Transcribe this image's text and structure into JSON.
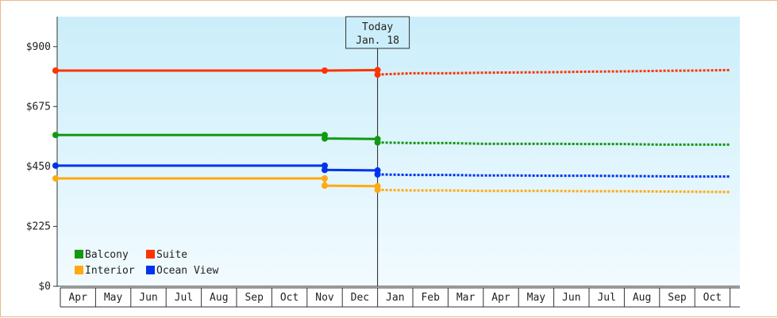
{
  "chart_data": {
    "type": "line",
    "title": "",
    "xlabel": "",
    "ylabel": "",
    "x": [
      "Apr",
      "May",
      "Jun",
      "Jul",
      "Aug",
      "Sep",
      "Oct",
      "Nov",
      "Dec",
      "Jan",
      "Feb",
      "Mar",
      "Apr",
      "May",
      "Jun",
      "Jul",
      "Aug",
      "Sep",
      "Oct"
    ],
    "ylim": [
      0,
      1012.5
    ],
    "yticks": [
      {
        "value": 0,
        "label": "$0"
      },
      {
        "value": 225,
        "label": "$225"
      },
      {
        "value": 450,
        "label": "$450"
      },
      {
        "value": 675,
        "label": "$675"
      },
      {
        "value": 900,
        "label": "$900"
      }
    ],
    "today": {
      "line1": "Today",
      "line2": "Jan. 18",
      "index": 9
    },
    "grid": false,
    "legend_position": "bottom-left",
    "series": [
      {
        "name": "Suite",
        "color": "#ff3300",
        "points": [
          [
            0,
            810
          ],
          [
            7.5,
            810
          ],
          [
            9,
            812
          ]
        ],
        "markers": [
          0,
          7.5,
          9
        ],
        "forecast": [
          [
            9,
            795
          ],
          [
            10,
            800
          ],
          [
            11,
            800
          ],
          [
            12,
            802
          ],
          [
            13,
            803
          ],
          [
            14,
            804
          ],
          [
            15,
            806
          ],
          [
            16,
            807
          ],
          [
            17,
            809
          ],
          [
            18,
            810
          ],
          [
            19,
            812
          ]
        ]
      },
      {
        "name": "Balcony",
        "color": "#119911",
        "points": [
          [
            0,
            568
          ],
          [
            7.5,
            568
          ],
          [
            7.5,
            555
          ],
          [
            9,
            553
          ]
        ],
        "markers": [
          0,
          7.5,
          9
        ],
        "forecast": [
          [
            9,
            540
          ],
          [
            10,
            538
          ],
          [
            11,
            538
          ],
          [
            12,
            535
          ],
          [
            13,
            535
          ],
          [
            14,
            535
          ],
          [
            15,
            534
          ],
          [
            16,
            534
          ],
          [
            17,
            532
          ],
          [
            18,
            532
          ],
          [
            19,
            532
          ]
        ]
      },
      {
        "name": "Ocean View",
        "color": "#0033ee",
        "points": [
          [
            0,
            453
          ],
          [
            7.5,
            453
          ],
          [
            7.5,
            437
          ],
          [
            9,
            435
          ]
        ],
        "markers": [
          0,
          7.5,
          9
        ],
        "forecast": [
          [
            9,
            420
          ],
          [
            10,
            418
          ],
          [
            11,
            418
          ],
          [
            12,
            416
          ],
          [
            13,
            416
          ],
          [
            14,
            415
          ],
          [
            15,
            415
          ],
          [
            16,
            414
          ],
          [
            17,
            413
          ],
          [
            18,
            412
          ],
          [
            19,
            412
          ]
        ]
      },
      {
        "name": "Interior",
        "color": "#ffaa11",
        "points": [
          [
            0,
            405
          ],
          [
            7.5,
            405
          ],
          [
            7.5,
            378
          ],
          [
            9,
            376
          ]
        ],
        "markers": [
          0,
          7.5,
          9
        ],
        "forecast": [
          [
            9,
            362
          ],
          [
            10,
            360
          ],
          [
            11,
            360
          ],
          [
            12,
            358
          ],
          [
            13,
            358
          ],
          [
            14,
            358
          ],
          [
            15,
            357
          ],
          [
            16,
            357
          ],
          [
            17,
            356
          ],
          [
            18,
            355
          ],
          [
            19,
            354
          ]
        ]
      }
    ]
  },
  "legend": [
    {
      "name": "Balcony",
      "color": "#119911"
    },
    {
      "name": "Suite",
      "color": "#ff3300"
    },
    {
      "name": "Interior",
      "color": "#ffaa11"
    },
    {
      "name": "Ocean View",
      "color": "#0033ee"
    }
  ]
}
